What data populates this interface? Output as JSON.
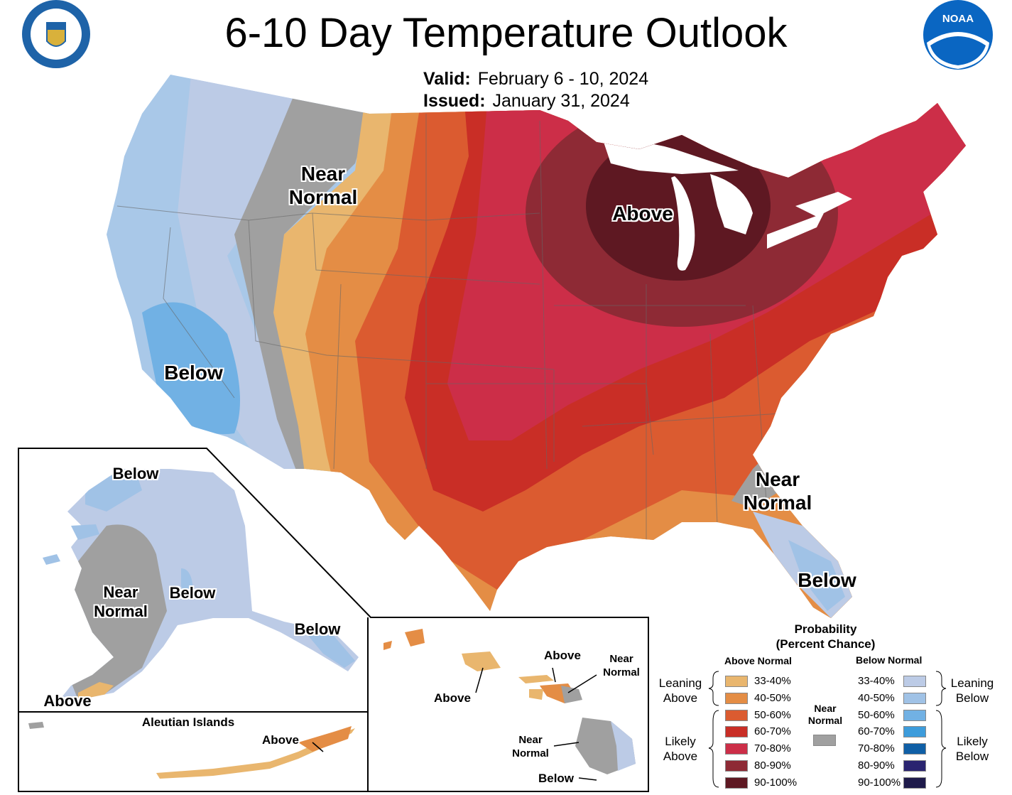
{
  "header": {
    "title": "6-10 Day Temperature Outlook",
    "valid_label": "Valid:",
    "valid_value": "February 6 - 10, 2024",
    "issued_label": "Issued:",
    "issued_value": "January 31, 2024",
    "left_logo": "Department of Commerce seal",
    "right_logo": "NOAA",
    "right_logo_text": "NOAA"
  },
  "map_labels": {
    "conus_near_normal_west": "Near\nNormal",
    "conus_above": "Above",
    "conus_below_west": "Below",
    "conus_near_normal_se": "Near\nNormal",
    "conus_below_florida": "Below",
    "alaska_below_north": "Below",
    "alaska_near_normal": "Near\nNormal",
    "alaska_below_interior": "Below",
    "alaska_below_se": "Below",
    "alaska_above_sw": "Above",
    "aleutian_title": "Aleutian Islands",
    "aleutian_above": "Above",
    "hawaii_above_center": "Above",
    "hawaii_near_normal_maui": "Near\nNormal",
    "hawaii_above_west": "Above",
    "hawaii_near_normal_big": "Near\nNormal",
    "hawaii_below_big": "Below"
  },
  "legend": {
    "title": "Probability\n(Percent Chance)",
    "above_header": "Above Normal",
    "below_header": "Below Normal",
    "near_header": "Near\nNormal",
    "leaning_above": "Leaning\nAbove",
    "likely_above": "Likely\nAbove",
    "leaning_below": "Leaning\nBelow",
    "likely_below": "Likely\nBelow",
    "above_rows": [
      {
        "label": "33-40%",
        "color": "#E9B66E"
      },
      {
        "label": "40-50%",
        "color": "#E48D45"
      },
      {
        "label": "50-60%",
        "color": "#DB5B30"
      },
      {
        "label": "60-70%",
        "color": "#C92E26"
      },
      {
        "label": "70-80%",
        "color": "#CC2E48"
      },
      {
        "label": "80-90%",
        "color": "#8E2A35"
      },
      {
        "label": "90-100%",
        "color": "#5E1822"
      }
    ],
    "below_rows": [
      {
        "label": "33-40%",
        "color": "#BCCBE6"
      },
      {
        "label": "40-50%",
        "color": "#A0C2E6"
      },
      {
        "label": "50-60%",
        "color": "#71B1E4"
      },
      {
        "label": "60-70%",
        "color": "#3D9CDB"
      },
      {
        "label": "70-80%",
        "color": "#0F5FA6"
      },
      {
        "label": "80-90%",
        "color": "#2A2470"
      },
      {
        "label": "90-100%",
        "color": "#1E1A4A"
      }
    ],
    "near_color": "#A0A0A0"
  }
}
